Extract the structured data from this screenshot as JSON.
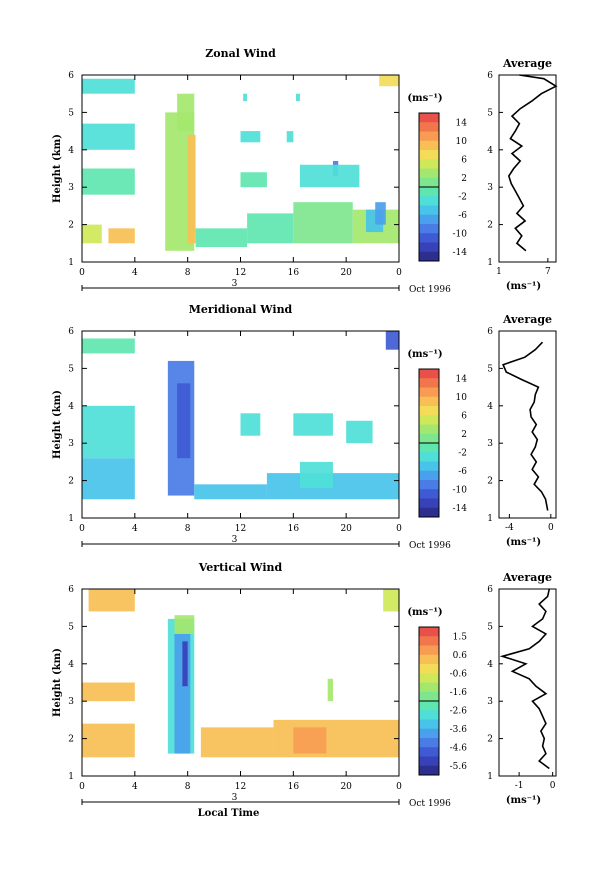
{
  "chart_data": [
    {
      "type": "heatmap",
      "title": "Zonal Wind",
      "ylabel": "Height (km)",
      "ylim": [
        1,
        6
      ],
      "yticks": [
        "1",
        "2",
        "3",
        "4",
        "5",
        "6"
      ],
      "xlim": [
        0,
        24
      ],
      "xticks": [
        "0",
        "4",
        "8",
        "12",
        "16",
        "20",
        "0"
      ],
      "date_day": "3",
      "date_label": "Oct 1996",
      "colorbar": {
        "unit": "(ms⁻¹)",
        "ticks": [
          "14",
          "10",
          "6",
          "2",
          "-2",
          "-6",
          "-10",
          "-14"
        ],
        "colors": [
          "#e8504a",
          "#f2764c",
          "#f79c52",
          "#f7bf55",
          "#f2dc58",
          "#cfe85a",
          "#a4e76e",
          "#7ee68e",
          "#5fe6b0",
          "#4fdfd8",
          "#48c3ea",
          "#4aa0ec",
          "#4a7ce6",
          "#3f5bd4",
          "#3741b8",
          "#2d2f8e"
        ]
      },
      "cells": [
        {
          "x0": 0,
          "x1": 1.5,
          "y0": 1.5,
          "y1": 2.0,
          "v": 6
        },
        {
          "x0": 2.0,
          "x1": 4.0,
          "y0": 1.5,
          "y1": 1.9,
          "v": 10
        },
        {
          "x0": 0,
          "x1": 4.0,
          "y0": 5.5,
          "y1": 5.9,
          "v": -2
        },
        {
          "x0": 0,
          "x1": 4.0,
          "y0": 4.0,
          "y1": 4.7,
          "v": -2
        },
        {
          "x0": 0,
          "x1": 4.0,
          "y0": 2.8,
          "y1": 3.5,
          "v": -1
        },
        {
          "x0": 6.3,
          "x1": 8.5,
          "y0": 1.3,
          "y1": 5.0,
          "v": 3
        },
        {
          "x0": 7.2,
          "x1": 8.5,
          "y0": 4.5,
          "y1": 5.5,
          "v": 4
        },
        {
          "x0": 8.0,
          "x1": 8.6,
          "y0": 1.5,
          "y1": 4.4,
          "v": 9
        },
        {
          "x0": 8.6,
          "x1": 12.5,
          "y0": 1.4,
          "y1": 1.9,
          "v": -1
        },
        {
          "x0": 12.5,
          "x1": 16.0,
          "y0": 1.5,
          "y1": 2.3,
          "v": 0
        },
        {
          "x0": 16.0,
          "x1": 20.5,
          "y0": 1.5,
          "y1": 2.6,
          "v": 1
        },
        {
          "x0": 20.5,
          "x1": 24.0,
          "y0": 1.5,
          "y1": 2.4,
          "v": 3
        },
        {
          "x0": 21.5,
          "x1": 22.8,
          "y0": 1.8,
          "y1": 2.4,
          "v": -5
        },
        {
          "x0": 22.2,
          "x1": 23.0,
          "y0": 2.0,
          "y1": 2.6,
          "v": -7
        },
        {
          "x0": 19.0,
          "x1": 19.4,
          "y0": 3.3,
          "y1": 3.7,
          "v": -8
        },
        {
          "x0": 12.0,
          "x1": 14.0,
          "y0": 3.0,
          "y1": 3.4,
          "v": -1
        },
        {
          "x0": 16.5,
          "x1": 21.0,
          "y0": 3.0,
          "y1": 3.6,
          "v": -2
        },
        {
          "x0": 12.0,
          "x1": 13.5,
          "y0": 4.2,
          "y1": 4.5,
          "v": -2
        },
        {
          "x0": 15.5,
          "x1": 16.0,
          "y0": 4.2,
          "y1": 4.5,
          "v": -2
        },
        {
          "x0": 16.2,
          "x1": 16.5,
          "y0": 5.3,
          "y1": 5.5,
          "v": -2
        },
        {
          "x0": 12.2,
          "x1": 12.5,
          "y0": 5.3,
          "y1": 5.5,
          "v": -2
        },
        {
          "x0": 22.5,
          "x1": 24.0,
          "y0": 5.7,
          "y1": 6.0,
          "v": 8
        }
      ],
      "avg": {
        "title": "Average",
        "xlabel": "(ms⁻¹)",
        "xlim": [
          1,
          8
        ],
        "xticks": [
          "1",
          "7"
        ],
        "xtick_values": [
          1,
          7
        ],
        "y": [
          1.3,
          1.5,
          1.7,
          1.9,
          2.1,
          2.3,
          2.5,
          2.7,
          2.9,
          3.1,
          3.3,
          3.5,
          3.7,
          3.9,
          4.1,
          4.3,
          4.5,
          4.7,
          4.9,
          5.1,
          5.3,
          5.5,
          5.7,
          5.9,
          6.0
        ],
        "x": [
          4.3,
          3.2,
          3.8,
          3.0,
          4.2,
          3.2,
          4.0,
          3.5,
          3.0,
          2.5,
          2.2,
          2.8,
          3.6,
          2.6,
          3.8,
          2.4,
          3.0,
          3.5,
          2.6,
          3.6,
          5.0,
          6.2,
          8.0,
          6.5,
          3.5
        ]
      }
    },
    {
      "type": "heatmap",
      "title": "Meridional Wind",
      "ylabel": "Height (km)",
      "ylim": [
        1,
        6
      ],
      "yticks": [
        "1",
        "2",
        "3",
        "4",
        "5",
        "6"
      ],
      "xlim": [
        0,
        24
      ],
      "xticks": [
        "0",
        "4",
        "8",
        "12",
        "16",
        "20",
        "0"
      ],
      "date_day": "3",
      "date_label": "Oct 1996",
      "colorbar": {
        "unit": "(ms⁻¹)",
        "ticks": [
          "14",
          "10",
          "6",
          "2",
          "-2",
          "-6",
          "-10",
          "-14"
        ],
        "colors": [
          "#e8504a",
          "#f2764c",
          "#f79c52",
          "#f7bf55",
          "#f2dc58",
          "#cfe85a",
          "#a4e76e",
          "#7ee68e",
          "#5fe6b0",
          "#4fdfd8",
          "#48c3ea",
          "#4aa0ec",
          "#4a7ce6",
          "#3f5bd4",
          "#3741b8",
          "#2d2f8e"
        ]
      },
      "cells": [
        {
          "x0": 0,
          "x1": 4.0,
          "y0": 1.5,
          "y1": 2.6,
          "v": -4
        },
        {
          "x0": 0,
          "x1": 4.0,
          "y0": 2.6,
          "y1": 4.0,
          "v": -2
        },
        {
          "x0": 0,
          "x1": 4.0,
          "y0": 5.4,
          "y1": 5.8,
          "v": -1
        },
        {
          "x0": 6.5,
          "x1": 8.5,
          "y0": 1.6,
          "y1": 5.2,
          "v": -8
        },
        {
          "x0": 7.2,
          "x1": 8.2,
          "y0": 2.6,
          "y1": 4.6,
          "v": -11
        },
        {
          "x0": 8.5,
          "x1": 14.0,
          "y0": 1.5,
          "y1": 1.9,
          "v": -4
        },
        {
          "x0": 14.0,
          "x1": 24.0,
          "y0": 1.5,
          "y1": 2.2,
          "v": -4
        },
        {
          "x0": 16.5,
          "x1": 19.0,
          "y0": 1.8,
          "y1": 2.5,
          "v": -2
        },
        {
          "x0": 12.0,
          "x1": 13.5,
          "y0": 3.2,
          "y1": 3.8,
          "v": -2
        },
        {
          "x0": 16.0,
          "x1": 19.0,
          "y0": 3.2,
          "y1": 3.8,
          "v": -2
        },
        {
          "x0": 20.0,
          "x1": 22.0,
          "y0": 3.0,
          "y1": 3.6,
          "v": -3
        },
        {
          "x0": 23.0,
          "x1": 24.0,
          "y0": 5.5,
          "y1": 6.0,
          "v": -10
        }
      ],
      "avg": {
        "title": "Average",
        "xlabel": "(ms⁻¹)",
        "xlim": [
          -5,
          0.5
        ],
        "xticks": [
          "-4",
          "0"
        ],
        "xtick_values": [
          -4,
          0
        ],
        "y": [
          1.2,
          1.5,
          1.7,
          1.9,
          2.1,
          2.3,
          2.5,
          2.7,
          2.9,
          3.1,
          3.3,
          3.5,
          3.7,
          3.9,
          4.1,
          4.3,
          4.5,
          4.7,
          4.9,
          5.1,
          5.3,
          5.5,
          5.7
        ],
        "x": [
          -0.3,
          -0.5,
          -0.9,
          -1.6,
          -1.2,
          -1.8,
          -1.4,
          -1.9,
          -1.5,
          -1.3,
          -1.8,
          -1.4,
          -1.9,
          -2.0,
          -1.6,
          -1.5,
          -1.2,
          -2.8,
          -4.3,
          -4.6,
          -2.5,
          -1.5,
          -0.8
        ]
      }
    },
    {
      "type": "heatmap",
      "title": "Vertical Wind",
      "ylabel": "Height (km)",
      "ylim": [
        1,
        6
      ],
      "yticks": [
        "1",
        "2",
        "3",
        "4",
        "5",
        "6"
      ],
      "xlim": [
        0,
        24
      ],
      "xticks": [
        "0",
        "4",
        "8",
        "12",
        "16",
        "20",
        "0"
      ],
      "date_day": "3",
      "date_label": "Oct 1996",
      "xlabel": "Local Time",
      "colorbar": {
        "unit": "(ms⁻¹)",
        "ticks": [
          "1.5",
          "0.6",
          "-0.6",
          "-1.6",
          "-2.6",
          "-3.6",
          "-4.6",
          "-5.6"
        ],
        "colors": [
          "#e8504a",
          "#f2764c",
          "#f79c52",
          "#f7bf55",
          "#f2dc58",
          "#cfe85a",
          "#a4e76e",
          "#7ee68e",
          "#5fe6b0",
          "#4fdfd8",
          "#48c3ea",
          "#4aa0ec",
          "#4a7ce6",
          "#3f5bd4",
          "#3741b8",
          "#2d2f8e"
        ]
      },
      "cells": [
        {
          "x0": 0,
          "x1": 4.0,
          "y0": 1.5,
          "y1": 2.4,
          "v": 0.2
        },
        {
          "x0": 0,
          "x1": 4.0,
          "y0": 3.0,
          "y1": 3.5,
          "v": 0.3
        },
        {
          "x0": 0.5,
          "x1": 4.0,
          "y0": 5.4,
          "y1": 6.0,
          "v": 0.0
        },
        {
          "x0": 6.5,
          "x1": 8.5,
          "y0": 1.6,
          "y1": 5.2,
          "v": -2.8
        },
        {
          "x0": 7.0,
          "x1": 8.2,
          "y0": 1.6,
          "y1": 4.8,
          "v": -4.0
        },
        {
          "x0": 7.6,
          "x1": 8.0,
          "y0": 3.4,
          "y1": 4.6,
          "v": -5.3
        },
        {
          "x0": 7.0,
          "x1": 8.5,
          "y0": 4.8,
          "y1": 5.3,
          "v": -1.5
        },
        {
          "x0": 9.0,
          "x1": 14.5,
          "y0": 1.5,
          "y1": 2.3,
          "v": 0.3
        },
        {
          "x0": 14.5,
          "x1": 24.0,
          "y0": 1.5,
          "y1": 2.5,
          "v": 0.4
        },
        {
          "x0": 16.0,
          "x1": 18.5,
          "y0": 1.6,
          "y1": 2.3,
          "v": 0.6
        },
        {
          "x0": 18.6,
          "x1": 19.0,
          "y0": 3.0,
          "y1": 3.6,
          "v": -1.2
        },
        {
          "x0": 22.8,
          "x1": 24.0,
          "y0": 5.4,
          "y1": 6.0,
          "v": -1.0
        }
      ],
      "avg": {
        "title": "Average",
        "xlabel": "(ms⁻¹)",
        "xlim": [
          -1.6,
          0.1
        ],
        "xticks": [
          "-1",
          "0"
        ],
        "xtick_values": [
          -1,
          0
        ],
        "y": [
          1.2,
          1.4,
          1.6,
          1.8,
          2.0,
          2.2,
          2.4,
          2.6,
          2.8,
          3.0,
          3.2,
          3.4,
          3.6,
          3.8,
          4.0,
          4.2,
          4.4,
          4.6,
          4.8,
          5.0,
          5.2,
          5.4,
          5.6,
          5.8,
          6.0
        ],
        "x": [
          -0.1,
          -0.4,
          -0.2,
          -0.3,
          -0.25,
          -0.35,
          -0.2,
          -0.3,
          -0.4,
          -0.6,
          -0.2,
          -0.5,
          -0.7,
          -1.2,
          -0.8,
          -1.5,
          -0.7,
          -0.4,
          -0.2,
          -0.6,
          -0.3,
          -0.2,
          -0.4,
          -0.15,
          -0.1
        ]
      }
    }
  ]
}
